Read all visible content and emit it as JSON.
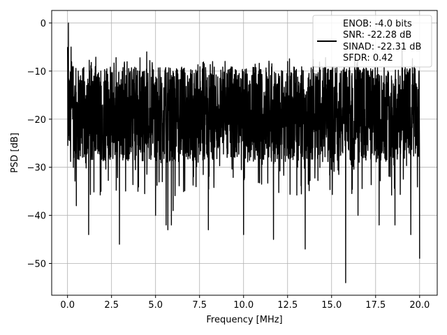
{
  "chart_data": {
    "type": "line",
    "title": "",
    "xlabel": "Frequency [MHz]",
    "ylabel": "PSD [dB]",
    "xlim": [
      -0.9,
      21.0
    ],
    "ylim": [
      -56.6,
      2.6
    ],
    "x_ticks": [
      0.0,
      2.5,
      5.0,
      7.5,
      10.0,
      12.5,
      15.0,
      17.5,
      20.0
    ],
    "x_tick_labels": [
      "0.0",
      "2.5",
      "5.0",
      "7.5",
      "10.0",
      "12.5",
      "15.0",
      "17.5",
      "20.0"
    ],
    "y_ticks": [
      0,
      -10,
      -20,
      -30,
      -40,
      -50
    ],
    "y_tick_labels": [
      "0",
      "−10",
      "−20",
      "−30",
      "−40",
      "−50"
    ],
    "grid": true,
    "legend": {
      "placement": "top-right",
      "entries": [
        "ENOB: -4.0 bits",
        "SNR: -22.28 dB",
        "SINAD: -22.31 dB",
        "SFDR: 0.42"
      ]
    },
    "series": [
      {
        "color": "#000000",
        "noise_band": {
          "x_range": [
            0.0,
            20.0
          ],
          "typical_upper": -10,
          "typical_lower": -28,
          "median": -19
        },
        "x": [
          0.0,
          0.05,
          0.1,
          0.2,
          0.35,
          0.5,
          0.8,
          1.2,
          1.9,
          2.5,
          2.95,
          4.0,
          4.5,
          5.0,
          5.6,
          5.7,
          5.9,
          6.0,
          6.5,
          8.0,
          9.5,
          10.0,
          11.7,
          12.5,
          13.5,
          14.5,
          15.0,
          15.8,
          16.0,
          16.5,
          17.0,
          17.7,
          18.2,
          18.6,
          19.0,
          19.5,
          20.0
        ],
        "y": [
          -5.0,
          0.0,
          -12.0,
          -5.0,
          -28.0,
          -38.0,
          -12.0,
          -44.0,
          -35.0,
          -13.0,
          -46.0,
          -35.0,
          -6.0,
          -40.0,
          -42.0,
          -43.0,
          -42.0,
          -39.0,
          -10.0,
          -43.0,
          -13.0,
          -44.0,
          -45.0,
          -8.0,
          -47.0,
          -13.0,
          -10.0,
          -54.0,
          -12.0,
          -40.0,
          -10.0,
          -42.0,
          -10.0,
          -42.0,
          -5.0,
          -44.0,
          -49.0
        ]
      }
    ]
  }
}
